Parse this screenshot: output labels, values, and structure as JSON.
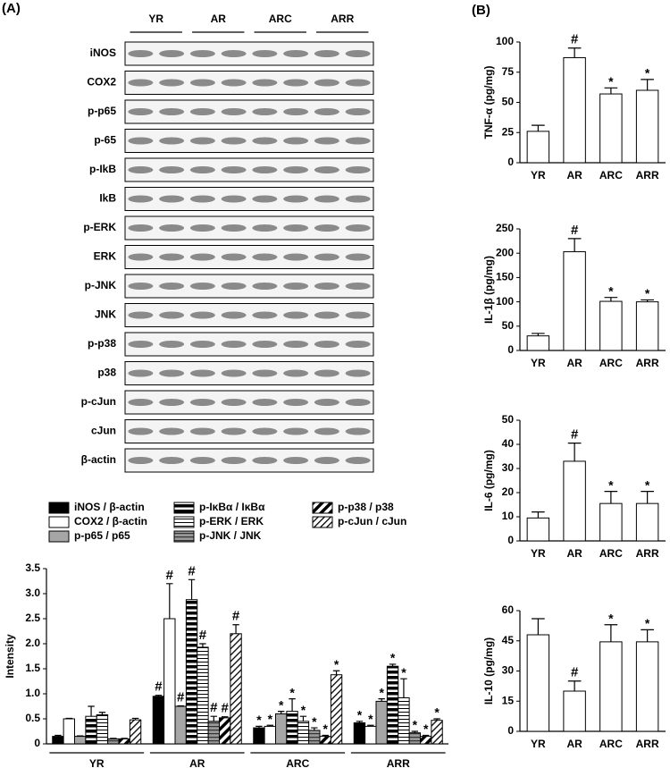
{
  "panel_a": {
    "label": "(A)",
    "blot": {
      "groups": [
        "YR",
        "AR",
        "ARC",
        "ARR"
      ],
      "rows": [
        "iNOS",
        "COX2",
        "p-p65",
        "p-65",
        "p-IkB",
        "IkB",
        "p-ERK",
        "ERK",
        "p-JNK",
        "JNK",
        "p-p38",
        "p38",
        "p-cJun",
        "cJun",
        "β-actin"
      ]
    }
  },
  "panel_b": {
    "label": "(B)"
  },
  "chart_data": [
    {
      "type": "bar",
      "ylabel": "Intensity",
      "categories": [
        "YR",
        "AR",
        "ARC",
        "ARR"
      ],
      "ylim": [
        0,
        3.5
      ],
      "yticks": [
        0,
        0.5,
        {
          "value": 1,
          "label": "1.0"
        },
        1.5,
        {
          "value": 2,
          "label": "2.0"
        },
        2.5,
        {
          "value": 3,
          "label": "3.0"
        },
        3.5
      ],
      "series": [
        {
          "name": "iNOS / β-actin",
          "pattern": "solid",
          "color": "#000000",
          "values": [
            0.15,
            0.95,
            0.32,
            0.42
          ],
          "errors": [
            0.02,
            0.02,
            0.03,
            0.03
          ],
          "annotations": [
            null,
            "#",
            "*",
            "*"
          ]
        },
        {
          "name": "COX2 / β-actin",
          "pattern": "solid",
          "color": "#ffffff",
          "values": [
            0.5,
            2.5,
            0.35,
            0.35
          ],
          "errors": [
            0.01,
            0.7,
            0.02,
            0.02
          ],
          "annotations": [
            null,
            "#",
            "*",
            "*"
          ]
        },
        {
          "name": "p-p65 / p65",
          "pattern": "solid",
          "color": "#a6a6a6",
          "values": [
            0.15,
            0.75,
            0.6,
            0.85
          ],
          "errors": [
            0.01,
            0.01,
            0.05,
            0.05
          ],
          "annotations": [
            null,
            "#",
            "*",
            "*"
          ]
        },
        {
          "name": "p-IκBα / IκBα",
          "pattern": "pat-hbold",
          "values": [
            0.55,
            2.88,
            0.65,
            1.55
          ],
          "errors": [
            0.2,
            0.4,
            0.25,
            0.04
          ],
          "annotations": [
            null,
            "#",
            "*",
            "*"
          ]
        },
        {
          "name": "p-ERK / ERK",
          "pattern": "pat-hfine",
          "values": [
            0.58,
            1.93,
            0.45,
            0.92
          ],
          "errors": [
            0.05,
            0.07,
            0.1,
            0.38
          ],
          "annotations": [
            null,
            "#",
            "*",
            "*"
          ]
        },
        {
          "name": "p-JNK / JNK",
          "pattern": "pat-hgray",
          "values": [
            0.1,
            0.45,
            0.27,
            0.22
          ],
          "errors": [
            0.01,
            0.1,
            0.05,
            0.03
          ],
          "annotations": [
            null,
            "#",
            "*",
            "*"
          ]
        },
        {
          "name": "p-p38 / p38",
          "pattern": "pat-dbold",
          "values": [
            0.1,
            0.52,
            0.15,
            0.15
          ],
          "errors": [
            0.01,
            0.02,
            0.02,
            0.02
          ],
          "annotations": [
            null,
            "#",
            "*",
            "*"
          ]
        },
        {
          "name": "p-cJun / cJun",
          "pattern": "pat-dfine",
          "values": [
            0.48,
            2.2,
            1.38,
            0.47
          ],
          "errors": [
            0.03,
            0.18,
            0.08,
            0.03
          ],
          "annotations": [
            null,
            "#",
            "*",
            "*"
          ]
        }
      ]
    },
    {
      "type": "bar",
      "ylabel": "TNF-α (pg/mg)",
      "categories": [
        "YR",
        "AR",
        "ARC",
        "ARR"
      ],
      "color": "#ffffff",
      "ylim": [
        0,
        100
      ],
      "yticks": [
        0,
        25,
        50,
        75,
        100
      ],
      "values": [
        26,
        87,
        57,
        60
      ],
      "errors": [
        5,
        8,
        5,
        9
      ],
      "annotations": [
        null,
        "#",
        "*",
        "*"
      ]
    },
    {
      "type": "bar",
      "ylabel": "IL-1β (pg/mg)",
      "categories": [
        "YR",
        "AR",
        "ARC",
        "ARR"
      ],
      "color": "#ffffff",
      "ylim": [
        0,
        250
      ],
      "yticks": [
        0,
        50,
        100,
        150,
        200,
        250
      ],
      "values": [
        30,
        203,
        101,
        100
      ],
      "errors": [
        5,
        27,
        8,
        4
      ],
      "annotations": [
        null,
        "#",
        "*",
        "*"
      ]
    },
    {
      "type": "bar",
      "ylabel": "IL-6 (pg/mg)",
      "categories": [
        "YR",
        "AR",
        "ARC",
        "ARR"
      ],
      "color": "#ffffff",
      "ylim": [
        0,
        50
      ],
      "yticks": [
        0,
        10,
        20,
        30,
        40,
        50
      ],
      "values": [
        9.5,
        33,
        15.5,
        15.5
      ],
      "errors": [
        2.5,
        7.5,
        5,
        5
      ],
      "annotations": [
        null,
        "#",
        "*",
        "*"
      ]
    },
    {
      "type": "bar",
      "ylabel": "IL-10 (pg/mg)",
      "categories": [
        "YR",
        "AR",
        "ARC",
        "ARR"
      ],
      "color": "#ffffff",
      "ylim": [
        0,
        60
      ],
      "yticks": [
        0,
        15,
        30,
        45,
        60
      ],
      "values": [
        48,
        20,
        44.5,
        44.5
      ],
      "errors": [
        8,
        5,
        8.5,
        6
      ],
      "annotations": [
        null,
        "#",
        "*",
        "*"
      ]
    }
  ]
}
